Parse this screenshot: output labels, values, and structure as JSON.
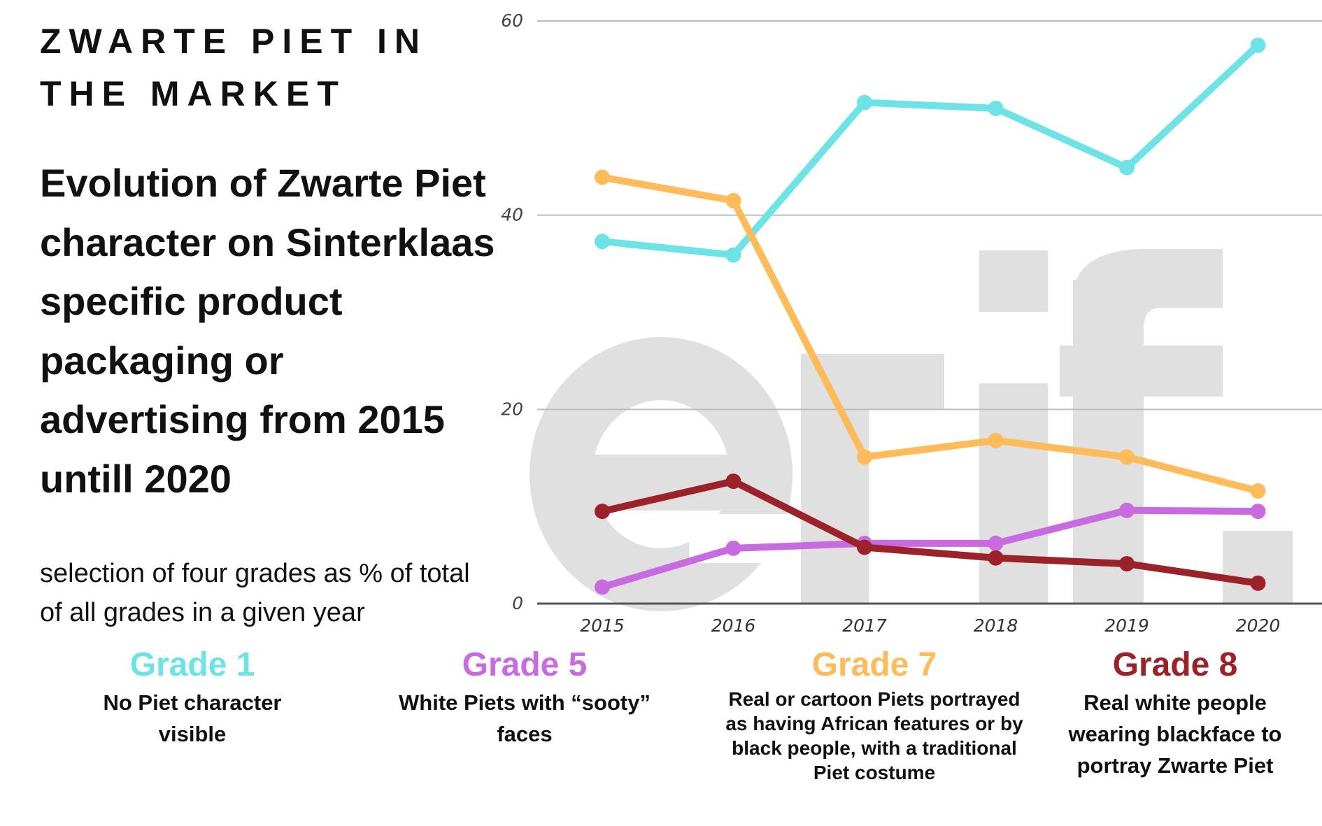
{
  "header": {
    "kicker": "ZWARTE PIET IN THE MARKET",
    "title": "Evolution of Zwarte Piet character on Sinterklaas specific product packaging or advertising from 2015 untill 2020",
    "note": "selection of  four grades as % of total of all grades in a given year"
  },
  "watermark": "erif.",
  "legend": [
    {
      "label": "Grade 1",
      "description": "No Piet character visible",
      "color": "#6de3e6"
    },
    {
      "label": "Grade 5",
      "description": "White Piets with “sooty” faces",
      "color": "#c86be0"
    },
    {
      "label": "Grade 7",
      "description": "Real or cartoon Piets portrayed as having African features or by black people, with a traditional Piet costume",
      "color": "#fdbb5a"
    },
    {
      "label": "Grade 8",
      "description": "Real white people wearing blackface to portray Zwarte Piet",
      "color": "#9b2228"
    }
  ],
  "chart_data": {
    "type": "line",
    "x": [
      "2015",
      "2016",
      "2017",
      "2018",
      "2019",
      "2020"
    ],
    "ylim": [
      0,
      60
    ],
    "yticks": [
      "0",
      "20",
      "40",
      "60"
    ],
    "grid": true,
    "series": [
      {
        "name": "Grade 1",
        "color": "#6de3e6",
        "values": [
          37.3,
          35.9,
          51.6,
          51.0,
          44.9,
          57.5
        ]
      },
      {
        "name": "Grade 7",
        "color": "#fdbb5a",
        "values": [
          43.9,
          41.5,
          15.1,
          16.8,
          15.1,
          11.6
        ]
      },
      {
        "name": "Grade 5",
        "color": "#c86be0",
        "values": [
          1.7,
          5.7,
          6.2,
          6.2,
          9.6,
          9.5
        ]
      },
      {
        "name": "Grade 8",
        "color": "#9b2228",
        "values": [
          9.5,
          12.6,
          5.8,
          4.7,
          4.1,
          2.1
        ]
      }
    ]
  }
}
